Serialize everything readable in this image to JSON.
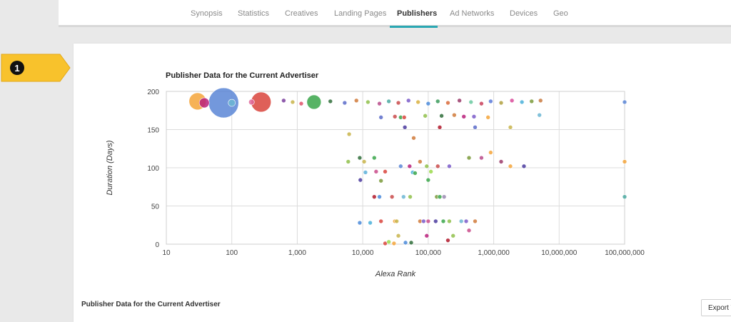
{
  "nav": {
    "tabs": [
      {
        "label": "Synopsis",
        "active": false
      },
      {
        "label": "Statistics",
        "active": false
      },
      {
        "label": "Creatives",
        "active": false
      },
      {
        "label": "Landing Pages",
        "active": false
      },
      {
        "label": "Publishers",
        "active": true
      },
      {
        "label": "Ad Networks",
        "active": false
      },
      {
        "label": "Devices",
        "active": false
      },
      {
        "label": "Geo",
        "active": false
      }
    ],
    "active_color": "#2aa8b3"
  },
  "callout": {
    "number": "1",
    "color": "#f8c22c"
  },
  "section_title": "Publisher Data for the Current Advertiser",
  "export_label": "Export V",
  "chart_data": {
    "type": "scatter",
    "title": "Publisher Data for the Current Advertiser",
    "xlabel": "Alexa Rank",
    "ylabel": "Duration (Days)",
    "x_scale": "log",
    "xlim": [
      10,
      100000000
    ],
    "ylim": [
      0,
      200
    ],
    "x_ticks": [
      "10",
      "100",
      "1,000",
      "10,000",
      "100,000",
      "1,000,000",
      "10,000,000",
      "100,000,000"
    ],
    "y_ticks": [
      "0",
      "50",
      "100",
      "150",
      "200"
    ],
    "grid": true,
    "legend": "none",
    "points": [
      {
        "x": 30,
        "y": 187,
        "size": 12,
        "color": "#f4a53a"
      },
      {
        "x": 75,
        "y": 185,
        "size": 21,
        "color": "#5b86d6"
      },
      {
        "x": 280,
        "y": 186,
        "size": 14,
        "color": "#d9443c"
      },
      {
        "x": 1800,
        "y": 186,
        "size": 10,
        "color": "#3aa64a"
      },
      {
        "x": 38,
        "y": 185,
        "size": 7,
        "color": "#b81f7a"
      },
      {
        "x": 100,
        "y": 185,
        "size": 5,
        "color": "#6bb6d3"
      },
      {
        "x": 200,
        "y": 186,
        "size": 4,
        "color": "#e06a9c"
      },
      {
        "x": 620,
        "y": 188,
        "size": 3,
        "color": "#7b3f9e"
      },
      {
        "x": 850,
        "y": 186,
        "size": 3,
        "color": "#c8b44a"
      },
      {
        "x": 1150,
        "y": 184,
        "size": 3,
        "color": "#e0506a"
      },
      {
        "x": 3200,
        "y": 187,
        "size": 3,
        "color": "#2f6d3a"
      },
      {
        "x": 5300,
        "y": 185,
        "size": 3,
        "color": "#5a6bc9"
      },
      {
        "x": 8000,
        "y": 188,
        "size": 3,
        "color": "#d07a3a"
      },
      {
        "x": 12000,
        "y": 186,
        "size": 3,
        "color": "#8fbf4a"
      },
      {
        "x": 18000,
        "y": 184,
        "size": 3,
        "color": "#b84a8a"
      },
      {
        "x": 25000,
        "y": 187,
        "size": 3,
        "color": "#4aa8a0"
      },
      {
        "x": 35000,
        "y": 185,
        "size": 3,
        "color": "#c94a4a"
      },
      {
        "x": 50000,
        "y": 188,
        "size": 3,
        "color": "#7a5ac9"
      },
      {
        "x": 70000,
        "y": 186,
        "size": 3,
        "color": "#d9b040"
      },
      {
        "x": 100000,
        "y": 184,
        "size": 3,
        "color": "#4a8ad9"
      },
      {
        "x": 140000,
        "y": 187,
        "size": 3,
        "color": "#3a9a5a"
      },
      {
        "x": 200000,
        "y": 185,
        "size": 3,
        "color": "#d96a3a"
      },
      {
        "x": 300000,
        "y": 188,
        "size": 3,
        "color": "#9a3a6a"
      },
      {
        "x": 450000,
        "y": 186,
        "size": 3,
        "color": "#6ac9a0"
      },
      {
        "x": 650000,
        "y": 184,
        "size": 3,
        "color": "#c9405a"
      },
      {
        "x": 900000,
        "y": 187,
        "size": 3,
        "color": "#5a7ad9"
      },
      {
        "x": 1300000,
        "y": 185,
        "size": 3,
        "color": "#b0a040"
      },
      {
        "x": 1900000,
        "y": 188,
        "size": 3,
        "color": "#d94a9a"
      },
      {
        "x": 2700000,
        "y": 186,
        "size": 3,
        "color": "#4ab0d9"
      },
      {
        "x": 3800000,
        "y": 187,
        "size": 3,
        "color": "#7a9a3a"
      },
      {
        "x": 5200000,
        "y": 188,
        "size": 3,
        "color": "#c97a40"
      },
      {
        "x": 100000000,
        "y": 186,
        "size": 3,
        "color": "#5b86d6"
      },
      {
        "x": 19000,
        "y": 166,
        "size": 3,
        "color": "#5a6bc9"
      },
      {
        "x": 31000,
        "y": 167,
        "size": 3,
        "color": "#c94a4a"
      },
      {
        "x": 38000,
        "y": 166,
        "size": 3,
        "color": "#3aa64a"
      },
      {
        "x": 43000,
        "y": 166,
        "size": 3,
        "color": "#d9443c"
      },
      {
        "x": 90000,
        "y": 168,
        "size": 3,
        "color": "#8fbf4a"
      },
      {
        "x": 160000,
        "y": 168,
        "size": 3,
        "color": "#2f6d3a"
      },
      {
        "x": 250000,
        "y": 169,
        "size": 3,
        "color": "#d07a3a"
      },
      {
        "x": 350000,
        "y": 167,
        "size": 3,
        "color": "#b81f7a"
      },
      {
        "x": 500000,
        "y": 167,
        "size": 3,
        "color": "#7a5ac9"
      },
      {
        "x": 820000,
        "y": 166,
        "size": 3,
        "color": "#f4a53a"
      },
      {
        "x": 5000000,
        "y": 169,
        "size": 3,
        "color": "#6bb6d3"
      },
      {
        "x": 44000,
        "y": 153,
        "size": 3,
        "color": "#4a3a9e"
      },
      {
        "x": 150000,
        "y": 153,
        "size": 3,
        "color": "#b0182a"
      },
      {
        "x": 520000,
        "y": 153,
        "size": 3,
        "color": "#5a6bc9"
      },
      {
        "x": 1800000,
        "y": 153,
        "size": 3,
        "color": "#c8b44a"
      },
      {
        "x": 6200,
        "y": 144,
        "size": 3,
        "color": "#c8b44a"
      },
      {
        "x": 60000,
        "y": 139,
        "size": 3,
        "color": "#d07a3a"
      },
      {
        "x": 9000,
        "y": 113,
        "size": 3,
        "color": "#2f6d3a"
      },
      {
        "x": 15000,
        "y": 113,
        "size": 3,
        "color": "#3aa64a"
      },
      {
        "x": 420000,
        "y": 113,
        "size": 3,
        "color": "#7a9a3a"
      },
      {
        "x": 650000,
        "y": 113,
        "size": 3,
        "color": "#b84a8a"
      },
      {
        "x": 6000,
        "y": 108,
        "size": 3,
        "color": "#8fbf4a"
      },
      {
        "x": 10500,
        "y": 108,
        "size": 3,
        "color": "#c8b44a"
      },
      {
        "x": 38000,
        "y": 102,
        "size": 3,
        "color": "#5b86d6"
      },
      {
        "x": 52000,
        "y": 102,
        "size": 3,
        "color": "#b81f7a"
      },
      {
        "x": 75000,
        "y": 108,
        "size": 3,
        "color": "#d07a3a"
      },
      {
        "x": 95000,
        "y": 102,
        "size": 3,
        "color": "#8fbf4a"
      },
      {
        "x": 140000,
        "y": 102,
        "size": 3,
        "color": "#c94a4a"
      },
      {
        "x": 210000,
        "y": 102,
        "size": 3,
        "color": "#7a5ac9"
      },
      {
        "x": 900000,
        "y": 120,
        "size": 3,
        "color": "#f4a53a"
      },
      {
        "x": 1300000,
        "y": 108,
        "size": 3,
        "color": "#9a3a6a"
      },
      {
        "x": 1800000,
        "y": 102,
        "size": 3,
        "color": "#f4a53a"
      },
      {
        "x": 2900000,
        "y": 102,
        "size": 3,
        "color": "#4a3a9e"
      },
      {
        "x": 100000000,
        "y": 108,
        "size": 3,
        "color": "#f4a53a"
      },
      {
        "x": 11000,
        "y": 94,
        "size": 3,
        "color": "#5ab0d9"
      },
      {
        "x": 16000,
        "y": 95,
        "size": 3,
        "color": "#c94a8a"
      },
      {
        "x": 22000,
        "y": 95,
        "size": 3,
        "color": "#d9443c"
      },
      {
        "x": 58000,
        "y": 94,
        "size": 3,
        "color": "#4ab0d9"
      },
      {
        "x": 63000,
        "y": 93,
        "size": 3,
        "color": "#3aa64a"
      },
      {
        "x": 110000,
        "y": 95,
        "size": 3,
        "color": "#9ad94a"
      },
      {
        "x": 9200,
        "y": 84,
        "size": 3,
        "color": "#4a3a9e"
      },
      {
        "x": 19000,
        "y": 83,
        "size": 3,
        "color": "#7a9a3a"
      },
      {
        "x": 100000,
        "y": 84,
        "size": 3,
        "color": "#3aa64a"
      },
      {
        "x": 15000,
        "y": 62,
        "size": 3,
        "color": "#b0182a"
      },
      {
        "x": 18000,
        "y": 62,
        "size": 3,
        "color": "#4a8ad9"
      },
      {
        "x": 28000,
        "y": 62,
        "size": 3,
        "color": "#c94a4a"
      },
      {
        "x": 42000,
        "y": 62,
        "size": 3,
        "color": "#6bb6d3"
      },
      {
        "x": 53000,
        "y": 62,
        "size": 3,
        "color": "#8fbf4a"
      },
      {
        "x": 135000,
        "y": 62,
        "size": 3,
        "color": "#7a9a3a"
      },
      {
        "x": 150000,
        "y": 62,
        "size": 3,
        "color": "#3aa64a"
      },
      {
        "x": 175000,
        "y": 62,
        "size": 3,
        "color": "#9a8ab0"
      },
      {
        "x": 100000000,
        "y": 62,
        "size": 3,
        "color": "#4aa8a0"
      },
      {
        "x": 9000,
        "y": 28,
        "size": 3,
        "color": "#4a8ad9"
      },
      {
        "x": 13000,
        "y": 28,
        "size": 3,
        "color": "#4ab0d9"
      },
      {
        "x": 19000,
        "y": 30,
        "size": 3,
        "color": "#d9443c"
      },
      {
        "x": 31000,
        "y": 30,
        "size": 3,
        "color": "#f4a53a"
      },
      {
        "x": 33000,
        "y": 30,
        "size": 3,
        "color": "#c8b44a"
      },
      {
        "x": 75000,
        "y": 30,
        "size": 3,
        "color": "#d07a3a"
      },
      {
        "x": 85000,
        "y": 30,
        "size": 3,
        "color": "#7a5ac9"
      },
      {
        "x": 100000,
        "y": 30,
        "size": 3,
        "color": "#c94a8a"
      },
      {
        "x": 130000,
        "y": 30,
        "size": 3,
        "color": "#4a3a9e"
      },
      {
        "x": 170000,
        "y": 30,
        "size": 3,
        "color": "#3aa64a"
      },
      {
        "x": 210000,
        "y": 30,
        "size": 3,
        "color": "#8fbf4a"
      },
      {
        "x": 320000,
        "y": 30,
        "size": 3,
        "color": "#6bb6d3"
      },
      {
        "x": 380000,
        "y": 30,
        "size": 3,
        "color": "#7a5ac9"
      },
      {
        "x": 520000,
        "y": 30,
        "size": 3,
        "color": "#d07a3a"
      },
      {
        "x": 420000,
        "y": 18,
        "size": 3,
        "color": "#c94a8a"
      },
      {
        "x": 35000,
        "y": 11,
        "size": 3,
        "color": "#c8b44a"
      },
      {
        "x": 95000,
        "y": 11,
        "size": 3,
        "color": "#b81f7a"
      },
      {
        "x": 240000,
        "y": 11,
        "size": 3,
        "color": "#8fbf4a"
      },
      {
        "x": 22000,
        "y": 1,
        "size": 3,
        "color": "#d9443c"
      },
      {
        "x": 25000,
        "y": 3,
        "size": 3,
        "color": "#9ad94a"
      },
      {
        "x": 30000,
        "y": 1,
        "size": 3,
        "color": "#f4a53a"
      },
      {
        "x": 55000,
        "y": 2,
        "size": 3,
        "color": "#2f6d3a"
      },
      {
        "x": 200000,
        "y": 5,
        "size": 3,
        "color": "#b0182a"
      },
      {
        "x": 45000,
        "y": 2,
        "size": 3,
        "color": "#4a8ad9"
      }
    ]
  }
}
